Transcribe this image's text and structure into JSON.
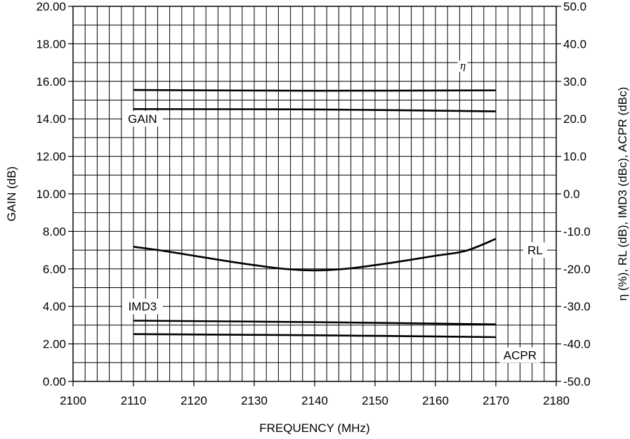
{
  "chart_data": {
    "type": "line",
    "xlabel": "FREQUENCY (MHz)",
    "ylabel_left": "GAIN (dB)",
    "ylabel_right": "η (%), RL (dB), IMD3 (dBc), ACPR (dBc)",
    "xlim": [
      2100,
      2180
    ],
    "ylim_left": [
      0,
      20
    ],
    "ylim_right": [
      -50,
      50
    ],
    "x_ticks": [
      "2100",
      "2110",
      "2120",
      "2130",
      "2140",
      "2150",
      "2160",
      "2170",
      "2180"
    ],
    "y_ticks_left": [
      "0.00",
      "2.00",
      "4.00",
      "6.00",
      "8.00",
      "10.00",
      "12.00",
      "14.00",
      "16.00",
      "18.00",
      "20.00"
    ],
    "y_ticks_right": [
      "-50.0",
      "-40.0",
      "-30.0",
      "-20.0",
      "-10.0",
      "0.0",
      "10.0",
      "20.0",
      "30.0",
      "40.0",
      "50.0"
    ],
    "grid": true,
    "series": [
      {
        "name": "η",
        "axis": "right",
        "x": [
          2110,
          2140,
          2170
        ],
        "y": [
          27.7,
          27.5,
          27.6
        ]
      },
      {
        "name": "GAIN",
        "axis": "left",
        "x": [
          2110,
          2140,
          2170
        ],
        "y": [
          14.52,
          14.5,
          14.4
        ]
      },
      {
        "name": "RL",
        "axis": "right",
        "x": [
          2110,
          2115,
          2120,
          2125,
          2130,
          2135,
          2140,
          2145,
          2150,
          2155,
          2160,
          2165,
          2170
        ],
        "y": [
          -14.1,
          -15.2,
          -16.5,
          -17.8,
          -19.0,
          -20.0,
          -20.4,
          -20.0,
          -19.0,
          -17.8,
          -16.5,
          -15.2,
          -12.0
        ]
      },
      {
        "name": "IMD3",
        "axis": "right",
        "x": [
          2110,
          2140,
          2170
        ],
        "y": [
          -33.8,
          -34.2,
          -34.8
        ]
      },
      {
        "name": "ACPR",
        "axis": "right",
        "x": [
          2110,
          2140,
          2170
        ],
        "y": [
          -37.4,
          -37.7,
          -38.2
        ]
      }
    ]
  }
}
